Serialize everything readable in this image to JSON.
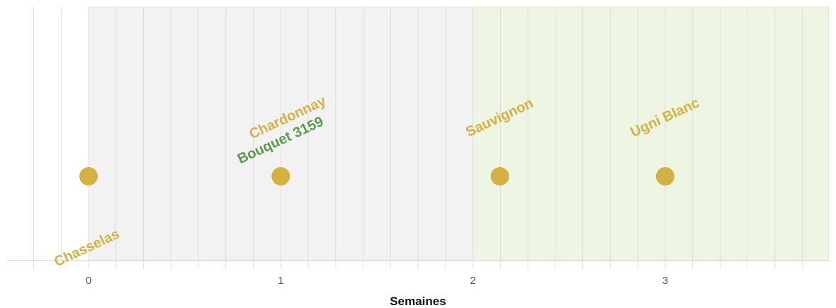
{
  "chart_data": {
    "type": "scatter",
    "xlabel": "Semaines",
    "ylabel": "",
    "xlim": [
      -0.42,
      3.85
    ],
    "x_ticks": [
      "0",
      "1",
      "2",
      "3"
    ],
    "bands": [
      {
        "name": "gray-band",
        "from": 0,
        "to": 2,
        "color": "#f2f2f2"
      },
      {
        "name": "green-band",
        "from": 2,
        "to": 3.85,
        "color": "#eef5e3"
      }
    ],
    "grid": true,
    "points": [
      {
        "name": "Chasselas",
        "x": 0,
        "label_position": "below-left"
      },
      {
        "name": "Chardonnay",
        "x": 1,
        "label_position": "above"
      },
      {
        "name": "Bouquet 3159",
        "x": 1,
        "label_position": "above"
      },
      {
        "name": "Sauvignon",
        "x": 2.14,
        "label_position": "above"
      },
      {
        "name": "Ugni Blanc",
        "x": 3,
        "label_position": "above"
      }
    ],
    "colors": {
      "point": "#d4b142",
      "label_gold": "#d4b142",
      "label_green": "#5a9a4a",
      "grid": "#dddddd",
      "axis": "#c8c8c8"
    }
  }
}
